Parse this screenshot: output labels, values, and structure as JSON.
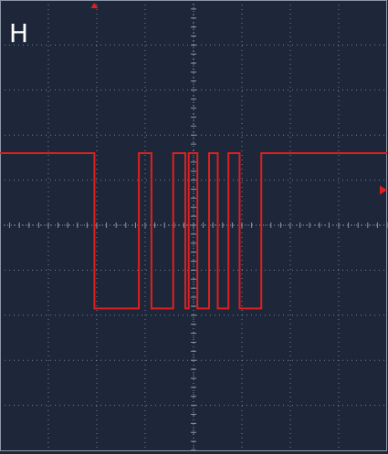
{
  "panel_label": "H",
  "colors": {
    "background": "#1d2739",
    "grid": "#8d96a6",
    "trace": "#e01f1f",
    "marker": "#e01f1f",
    "label": "#ffffff"
  },
  "chart_data": {
    "type": "line",
    "title": "",
    "xlabel": "",
    "ylabel": "",
    "grid": true,
    "divisions": {
      "x": 8,
      "y": 10
    },
    "xlim": [
      -4,
      4
    ],
    "ylim": [
      -5,
      5
    ],
    "series": [
      {
        "name": "",
        "x": [
          -4.0,
          -2.05,
          -2.05,
          -1.13,
          -1.13,
          -0.87,
          -0.87,
          -0.42,
          -0.42,
          -0.17,
          -0.17,
          -0.1,
          -0.1,
          0.08,
          0.08,
          0.32,
          0.32,
          0.5,
          0.5,
          0.72,
          0.72,
          0.95,
          0.95,
          1.4,
          1.4,
          2.3,
          2.3,
          4.0
        ],
        "y": [
          1.6,
          1.6,
          -1.85,
          -1.85,
          1.6,
          1.6,
          -1.85,
          -1.85,
          1.6,
          1.6,
          -1.85,
          -1.85,
          1.6,
          1.6,
          -1.85,
          -1.85,
          1.6,
          1.6,
          -1.85,
          -1.85,
          1.6,
          1.6,
          -1.85,
          -1.85,
          1.6,
          1.6,
          1.6,
          1.6
        ]
      }
    ],
    "trigger_position_x": -2.05,
    "trigger_level_y": 0.78
  }
}
